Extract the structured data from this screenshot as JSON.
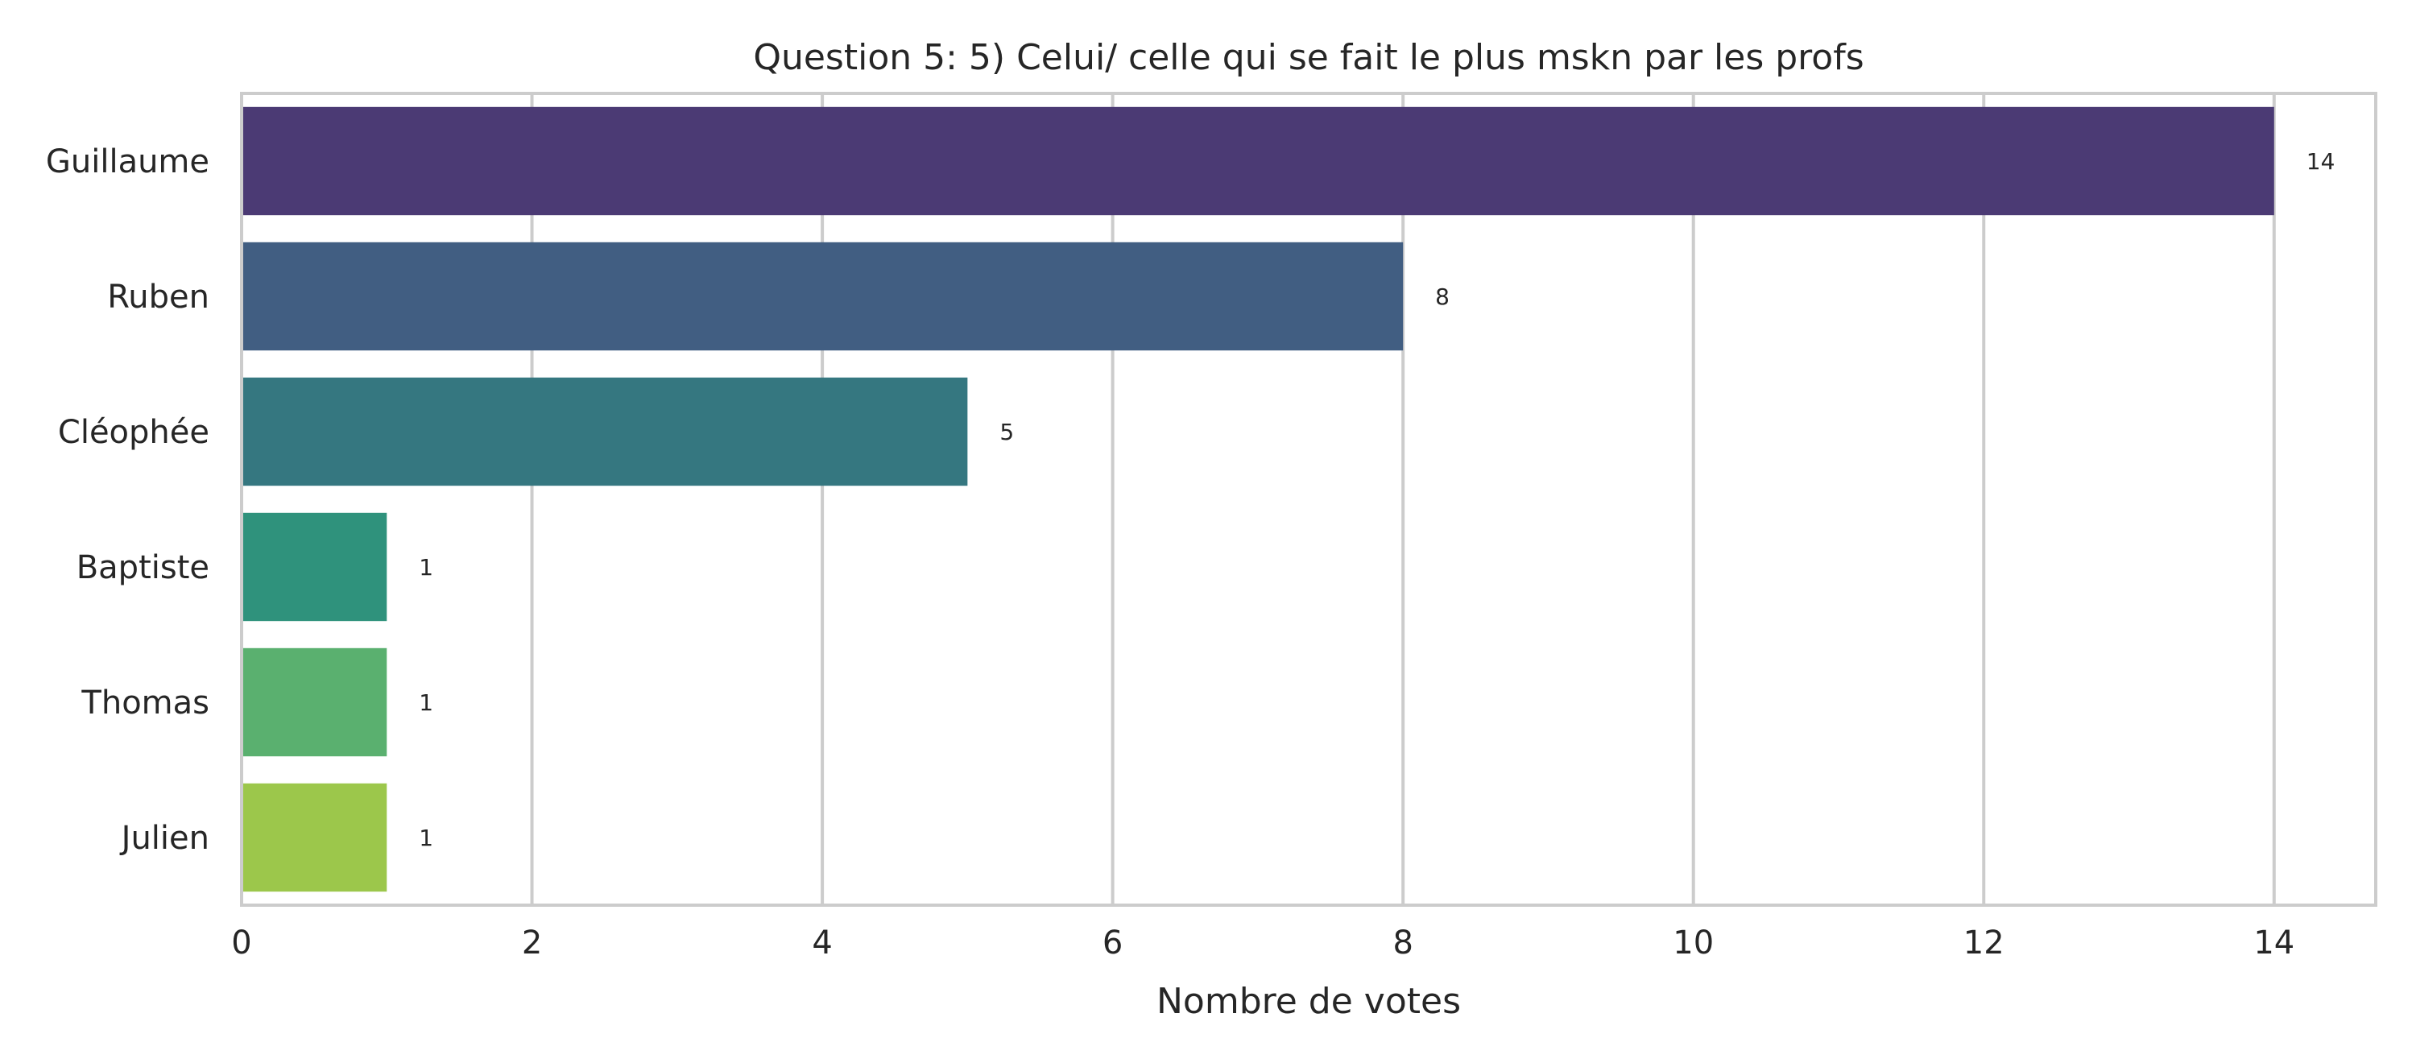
{
  "chart_data": {
    "type": "bar",
    "orientation": "horizontal",
    "title": "Question 5: 5) Celui/ celle qui se fait le plus mskn par les profs",
    "xlabel": "Nombre de votes",
    "ylabel": "",
    "categories": [
      "Guillaume",
      "Ruben",
      "Cléophée",
      "Baptiste",
      "Thomas",
      "Julien"
    ],
    "values": [
      14,
      8,
      5,
      1,
      1,
      1
    ],
    "data_labels": [
      "14",
      "8",
      "5",
      "1",
      "1",
      "1"
    ],
    "xlim": [
      0,
      14.7
    ],
    "xticks": [
      0,
      2,
      4,
      6,
      8,
      10,
      12,
      14
    ],
    "grid": true,
    "colors": [
      "#4b3a74",
      "#415e82",
      "#357780",
      "#2f927c",
      "#5ab06f",
      "#9cc74b"
    ]
  }
}
